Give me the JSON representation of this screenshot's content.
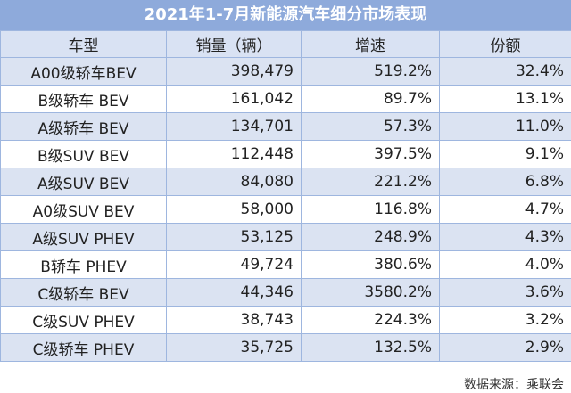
{
  "title": "2021年1-7月新能源汽车细分市场表现",
  "headers": [
    "车型",
    "销量（辆）",
    "增速",
    "份额"
  ],
  "rows": [
    {
      "segment": "A00级轿车BEV",
      "sales": "398,479",
      "growth": "519.2%",
      "share": "32.4%"
    },
    {
      "segment": "B级轿车 BEV",
      "sales": "161,042",
      "growth": "89.7%",
      "share": "13.1%"
    },
    {
      "segment": "A级轿车 BEV",
      "sales": "134,701",
      "growth": "57.3%",
      "share": "11.0%"
    },
    {
      "segment": "B级SUV BEV",
      "sales": "112,448",
      "growth": "397.5%",
      "share": "9.1%"
    },
    {
      "segment": "A级SUV BEV",
      "sales": "84,080",
      "growth": "221.2%",
      "share": "6.8%"
    },
    {
      "segment": "A0级SUV BEV",
      "sales": "58,000",
      "growth": "116.8%",
      "share": "4.7%"
    },
    {
      "segment": "A级SUV PHEV",
      "sales": "53,125",
      "growth": "248.9%",
      "share": "4.3%"
    },
    {
      "segment": "B轿车 PHEV",
      "sales": "49,724",
      "growth": "380.6%",
      "share": "4.0%"
    },
    {
      "segment": "C级轿车 BEV",
      "sales": "44,346",
      "growth": "3580.2%",
      "share": "3.6%"
    },
    {
      "segment": "C级SUV PHEV",
      "sales": "38,743",
      "growth": "224.3%",
      "share": "3.2%"
    },
    {
      "segment": "C级轿车 PHEV",
      "sales": "35,725",
      "growth": "132.5%",
      "share": "2.9%"
    }
  ],
  "source": "数据来源：乘联会",
  "colors": {
    "title_background": "#8eaadb",
    "header_background": "#d9e2f3",
    "alternate_row_background": "#dbe3f2",
    "border": "#9eb6df"
  }
}
